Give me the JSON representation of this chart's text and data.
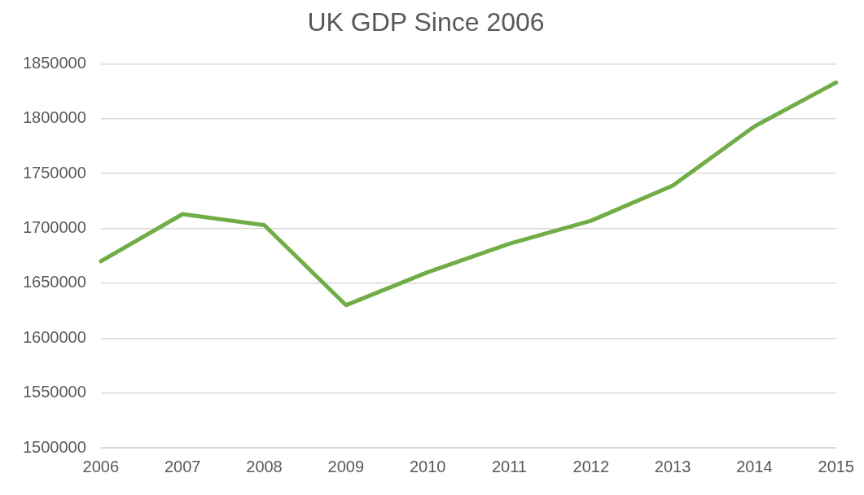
{
  "chart_data": {
    "type": "line",
    "title": "UK GDP Since 2006",
    "categories": [
      "2006",
      "2007",
      "2008",
      "2009",
      "2010",
      "2011",
      "2012",
      "2013",
      "2014",
      "2015"
    ],
    "series": [
      {
        "color": "#70ad47",
        "values": [
          1670000,
          1713000,
          1703000,
          1630000,
          1660000,
          1686000,
          1707000,
          1739000,
          1793000,
          1833000
        ]
      }
    ],
    "ylim": [
      1500000,
      1850000
    ],
    "yticks": [
      1500000,
      1550000,
      1600000,
      1650000,
      1700000,
      1750000,
      1800000,
      1850000
    ],
    "grid": "y",
    "legend": false,
    "marker": "none",
    "line_style": "solid"
  }
}
